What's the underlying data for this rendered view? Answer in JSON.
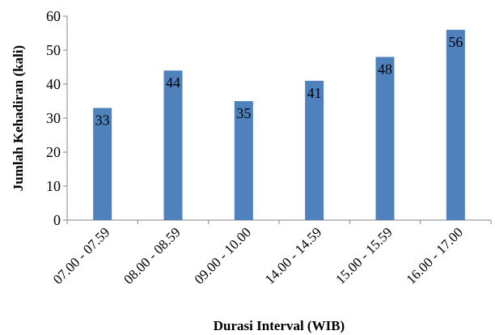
{
  "chart_data": {
    "type": "bar",
    "categories": [
      "07.00 - 07.59",
      "08.00 - 08.59",
      "09.00 - 10.00",
      "14.00 - 14.59",
      "15.00 - 15.59",
      "16.00 - 17.00"
    ],
    "values": [
      33,
      44,
      35,
      41,
      48,
      56
    ],
    "title": "",
    "xlabel": "Durasi Interval  (WIB)",
    "ylabel": "Jumlah Kehadiran (kali)",
    "ylim": [
      0,
      60
    ],
    "yticks": [
      0,
      10,
      20,
      30,
      40,
      50,
      60
    ],
    "grid": false,
    "legend": "none",
    "bar_color": "#4f81bd",
    "data_labels": "inside-top"
  }
}
